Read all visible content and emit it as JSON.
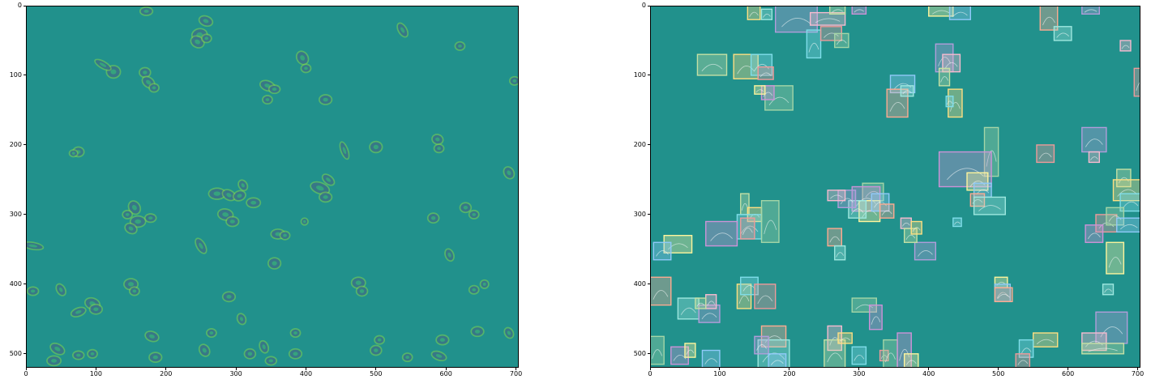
{
  "figure": {
    "background": "#ffffff",
    "image_background": "#21918c",
    "colormap": "viridis",
    "x_ticks": [
      "0",
      "100",
      "200",
      "300",
      "400",
      "500",
      "600",
      "700"
    ],
    "y_ticks": [
      "0",
      "100",
      "200",
      "300",
      "400",
      "500"
    ],
    "x_range": [
      0,
      704
    ],
    "y_range": [
      0,
      520
    ]
  },
  "panels": [
    {
      "id": "left",
      "kind": "phase-contrast microscopy image of cells (grayscale rendered with viridis colormap)"
    },
    {
      "id": "right",
      "kind": "same image with per-cell instance segmentation bounding boxes and masks",
      "box_count_estimate": 130
    }
  ]
}
